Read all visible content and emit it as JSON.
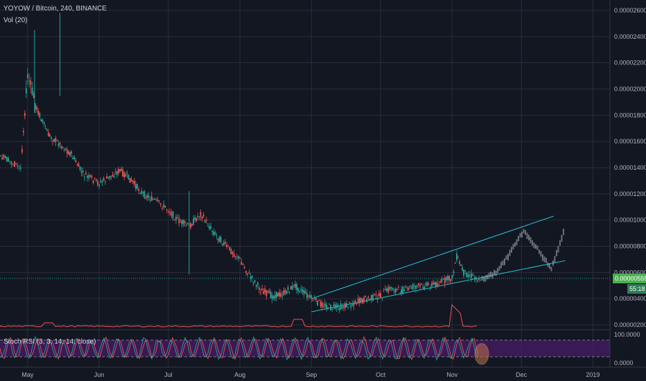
{
  "header": {
    "symbol": "YOYOW / Bitcoin, 240, BINANCE",
    "volume_label": "Vol (20)"
  },
  "price_scale": {
    "ticks": [
      "0.00002600",
      "0.00002400",
      "0.00002200",
      "0.00002000",
      "0.00001800",
      "0.00001600",
      "0.00001400",
      "0.00001200",
      "0.00001000",
      "0.00000800",
      "0.00000600",
      "0.00000400",
      "0.00000200"
    ],
    "current_price": "0.00000555",
    "countdown": "55:18"
  },
  "indicator": {
    "label": "Stoch RSI (3, 3, 14, 14, close)",
    "upper_label": "100.0000",
    "lower_label": "0.0000"
  },
  "time_axis": [
    "May",
    "Jun",
    "Jul",
    "Aug",
    "Sep",
    "Oct",
    "Nov",
    "Dec",
    "2019"
  ],
  "colors": {
    "background": "#131722",
    "up": "#26a69a",
    "down": "#ef5350",
    "trendline": "#26c6da",
    "volume_line": "#ef5350",
    "stoch_band": "#4a1c6b",
    "price_tag": "#4caf50",
    "countdown_tag": "#2e7d55",
    "projection": "#b0bec5"
  },
  "chart_data": {
    "type": "line",
    "title": "YOYOW / Bitcoin, 240, BINANCE",
    "xlabel": "",
    "ylabel": "",
    "ylim": [
      1.8e-06,
      2.7e-06
    ],
    "x": [
      "2018-04-01",
      "2018-04-10",
      "2018-04-20",
      "2018-04-28",
      "2018-05-01",
      "2018-05-05",
      "2018-05-10",
      "2018-05-15",
      "2018-05-20",
      "2018-05-25",
      "2018-06-01",
      "2018-06-05",
      "2018-06-10",
      "2018-06-15",
      "2018-06-20",
      "2018-06-25",
      "2018-07-01",
      "2018-07-05",
      "2018-07-10",
      "2018-07-15",
      "2018-07-20",
      "2018-07-25",
      "2018-08-01",
      "2018-08-05",
      "2018-08-10",
      "2018-08-15",
      "2018-08-20",
      "2018-08-25",
      "2018-09-01",
      "2018-09-05",
      "2018-09-10",
      "2018-09-15",
      "2018-09-20",
      "2018-09-25",
      "2018-10-01",
      "2018-10-05",
      "2018-10-10",
      "2018-10-15",
      "2018-10-20",
      "2018-10-25",
      "2018-11-01",
      "2018-11-03",
      "2018-11-06",
      "2018-11-10",
      "2018-11-14"
    ],
    "series": [
      {
        "values": [
          1.25e-05,
          1.3e-05,
          1.48e-05,
          1.4e-05,
          2.1e-05,
          1.85e-05,
          1.65e-05,
          1.58e-05,
          1.5e-05,
          1.35e-05,
          1.28e-05,
          1.32e-05,
          1.38e-05,
          1.3e-05,
          1.2e-05,
          1.15e-05,
          1.08e-05,
          1e-05,
          9.5e-06,
          1.05e-05,
          9.2e-06,
          8.2e-06,
          7e-06,
          5.8e-06,
          4.7e-06,
          4.2e-06,
          4.4e-06,
          5e-06,
          4e-06,
          3.6e-06,
          3.3e-06,
          3.4e-06,
          3.7e-06,
          4e-06,
          4.2e-06,
          4.8e-06,
          4.6e-06,
          4.9e-06,
          5e-06,
          5.1e-06,
          5.6e-06,
          7.2e-06,
          6e-06,
          5.7e-06,
          5.5e-06
        ]
      }
    ],
    "projection": {
      "x": [
        "2018-11-14",
        "2018-11-20",
        "2018-11-26",
        "2018-12-02",
        "2018-12-08",
        "2018-12-14",
        "2018-12-20"
      ],
      "values": [
        5.5e-06,
        6e-06,
        7.5e-06,
        9.2e-06,
        7.8e-06,
        6.3e-06,
        9.5e-06
      ]
    },
    "channel": {
      "upper": {
        "x": [
          "2018-09-01",
          "2018-12-15"
        ],
        "values": [
          4e-06,
          1.03e-05
        ]
      },
      "lower": {
        "x": [
          "2018-09-01",
          "2018-12-20"
        ],
        "values": [
          3e-06,
          6.9e-06
        ]
      }
    }
  }
}
